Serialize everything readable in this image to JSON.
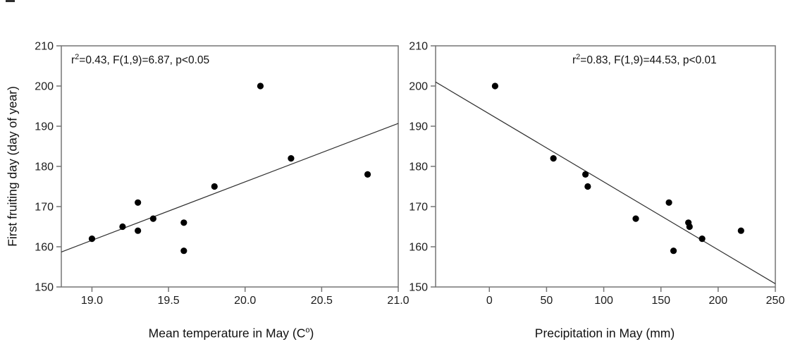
{
  "figure": {
    "ylabel": "First fruiting day (day of year)",
    "colors": {
      "point": "#000000",
      "regression_line": "#2f2f2f",
      "axis": "#757575",
      "text": "#1c1c1c"
    },
    "left_panel": {
      "annotation_base": "r",
      "annotation_sup": "2",
      "annotation_rest": "=0.43, F(1,9)=6.87, p<0.05",
      "xlabel_pre": "Mean temperature in May (C",
      "xlabel_sup": "o",
      "xlabel_post": ")"
    },
    "right_panel": {
      "annotation_base": "r",
      "annotation_sup": "2",
      "annotation_rest": "=0.83, F(1,9)=44.53, p<0.01",
      "xlabel": "Precipitation in May (mm)"
    }
  },
  "chart_data": [
    {
      "type": "scatter",
      "title": "",
      "xlabel": "Mean temperature in May (C°)",
      "ylabel": "First fruiting day (day of year)",
      "annotation": "r²=0.43, F(1,9)=6.87, p<0.05",
      "grid": false,
      "legend": "none",
      "xlim": [
        18.8,
        21.0
      ],
      "ylim": [
        150,
        210
      ],
      "x_ticks": [
        19.0,
        19.5,
        20.0,
        20.5,
        21.0
      ],
      "x_tick_labels": [
        "19.0",
        "19.5",
        "20.0",
        "20.5",
        "21.0"
      ],
      "y_ticks": [
        150,
        160,
        170,
        180,
        190,
        200,
        210
      ],
      "y_tick_labels": [
        "150",
        "160",
        "170",
        "180",
        "190",
        "200",
        "210"
      ],
      "points": [
        [
          19.0,
          162
        ],
        [
          19.2,
          165
        ],
        [
          19.3,
          171
        ],
        [
          19.3,
          164
        ],
        [
          19.4,
          167
        ],
        [
          19.6,
          166
        ],
        [
          19.6,
          159
        ],
        [
          19.8,
          175
        ],
        [
          20.1,
          200
        ],
        [
          20.3,
          182
        ],
        [
          20.8,
          178
        ]
      ],
      "regression_line": {
        "x1": 18.8,
        "y1": 158.7,
        "x2": 21.0,
        "y2": 190.7
      }
    },
    {
      "type": "scatter",
      "title": "",
      "xlabel": "Precipitation in May (mm)",
      "ylabel": "First fruiting day (day of year)",
      "annotation": "r²=0.83, F(1,9)=44.53, p<0.01",
      "grid": false,
      "legend": "none",
      "xlim": [
        -47,
        250
      ],
      "ylim": [
        150,
        210
      ],
      "x_ticks": [
        0,
        50,
        100,
        150,
        200,
        250
      ],
      "x_tick_labels": [
        "0",
        "50",
        "100",
        "150",
        "200",
        "250"
      ],
      "y_ticks": [
        150,
        160,
        170,
        180,
        190,
        200,
        210
      ],
      "y_tick_labels": [
        "150",
        "160",
        "170",
        "180",
        "190",
        "200",
        "210"
      ],
      "points": [
        [
          5,
          200
        ],
        [
          56,
          182
        ],
        [
          84,
          178
        ],
        [
          86,
          175
        ],
        [
          128,
          167
        ],
        [
          157,
          171
        ],
        [
          161,
          159
        ],
        [
          174,
          166
        ],
        [
          175,
          165
        ],
        [
          186,
          162
        ],
        [
          220,
          164
        ]
      ],
      "regression_line": {
        "x1": -47,
        "y1": 201.0,
        "x2": 250,
        "y2": 150.8
      }
    }
  ]
}
